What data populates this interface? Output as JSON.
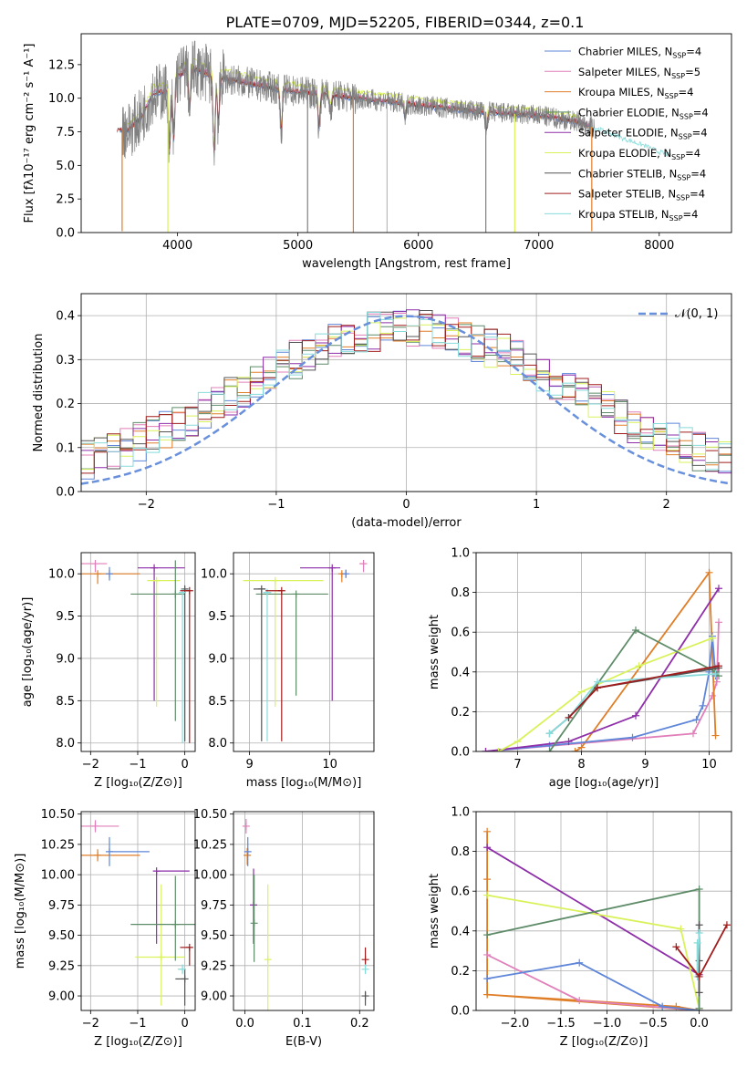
{
  "figure": {
    "title": "PLATE=0709, MJD=52205, FIBERID=0344, z=0.1",
    "series_colors": {
      "Chabrier MILES": "#5f86d9",
      "Salpeter MILES": "#e07fb9",
      "Kroupa MILES": "#e07e28",
      "Chabrier ELODIE": "#5e8c69",
      "Salpeter ELODIE": "#8e2ea9",
      "Kroupa ELODIE": "#d9f25a",
      "Chabrier STELIB": "#555555",
      "Salpeter STELIB": "#a01c1c",
      "Kroupa STELIB": "#88dbdb",
      "data": "#808080",
      "normal": "#6890dc"
    }
  },
  "chart_data": [
    {
      "id": "spectrum",
      "type": "line",
      "ylabel": "Flux [fλ10⁻¹⁷ erg cm⁻² s⁻¹ A⁻¹]",
      "xlabel": "wavelength [Angstrom, rest frame]",
      "xlim": [
        3200,
        8600
      ],
      "ylim": [
        0,
        14.8
      ],
      "xticks": [
        4000,
        5000,
        6000,
        7000,
        8000
      ],
      "yticks": [
        0.0,
        2.5,
        5.0,
        7.5,
        10.0,
        12.5
      ],
      "legend_position": "top-right",
      "legend": [
        {
          "name": "Chabrier MILES",
          "nssp": "4"
        },
        {
          "name": "Salpeter MILES",
          "nssp": "5"
        },
        {
          "name": "Kroupa MILES",
          "nssp": "4"
        },
        {
          "name": "Chabrier ELODIE",
          "nssp": "4"
        },
        {
          "name": "Salpeter ELODIE",
          "nssp": "4"
        },
        {
          "name": "Kroupa ELODIE",
          "nssp": "4"
        },
        {
          "name": "Chabrier STELIB",
          "nssp": "4"
        },
        {
          "name": "Salpeter STELIB",
          "nssp": "4"
        },
        {
          "name": "Kroupa STELIB",
          "nssp": "4"
        }
      ],
      "continuum": {
        "x": [
          3500,
          3600,
          3700,
          3800,
          3900,
          4000,
          4100,
          4200,
          4300,
          4500,
          4700,
          4900,
          5100,
          5300,
          5500,
          5800,
          6100,
          6400,
          6700,
          7000,
          7300,
          7500,
          7700,
          7900,
          8000,
          8100
        ],
        "y": [
          7.6,
          7.7,
          8.6,
          10.4,
          10.5,
          11.6,
          12.3,
          12.0,
          11.6,
          11.3,
          10.9,
          10.6,
          10.4,
          10.2,
          10.0,
          9.7,
          9.4,
          9.1,
          8.9,
          8.7,
          8.3,
          7.7,
          7.0,
          6.4,
          6.0,
          5.7
        ]
      },
      "spikes": [
        {
          "x": 3540,
          "y": 0.1,
          "color": "#e07e28"
        },
        {
          "x": 3920,
          "y": 0.0,
          "color": "#d9f25a"
        },
        {
          "x": 5080,
          "y": 0.0,
          "color": "#808080"
        },
        {
          "x": 5460,
          "y": 0.0,
          "color": "#e07e28"
        },
        {
          "x": 5740,
          "y": 0.0,
          "color": "#bbbbbb"
        },
        {
          "x": 6560,
          "y": 0.0,
          "color": "#808080"
        },
        {
          "x": 6800,
          "y": 0.0,
          "color": "#d9f25a"
        },
        {
          "x": 7440,
          "y": 0.1,
          "color": "#e07e28"
        }
      ]
    },
    {
      "id": "residuals",
      "type": "histogram",
      "xlabel": "(data-model)/error",
      "ylabel": "Normed distribution",
      "xlim": [
        -2.5,
        2.5
      ],
      "ylim": [
        0,
        0.45
      ],
      "xticks": [
        -2,
        -1,
        0,
        1,
        2
      ],
      "yticks": [
        0.0,
        0.1,
        0.2,
        0.3,
        0.4
      ],
      "legend": "𝒩(0, 1)",
      "legend_position": "top-right",
      "gaussian": {
        "mean": 0,
        "sigma": 1
      },
      "bin_width": 0.1
    },
    {
      "id": "age_Z",
      "type": "errorbar",
      "xlabel": "Z [log₁₀(Z/Z⊙)]",
      "ylabel": "age  [log₁₀(age/yr)]",
      "xlim": [
        -2.2,
        0.22
      ],
      "ylim": [
        7.9,
        10.25
      ],
      "xticks": [
        -2,
        -1,
        0
      ],
      "yticks": [
        8.0,
        8.5,
        9.0,
        9.5,
        10.0
      ],
      "points": [
        {
          "series": "Salpeter MILES",
          "x": -1.9,
          "xerr": [
            0.3,
            0.25
          ],
          "y": 10.12,
          "yerr": [
            0.1,
            0.01
          ]
        },
        {
          "series": "Kroupa MILES",
          "x": -1.85,
          "xerr": [
            0.35,
            0.9
          ],
          "y": 10.0,
          "yerr": [
            0.12,
            0.01
          ]
        },
        {
          "series": "Chabrier MILES",
          "x": -1.6,
          "xerr": [
            0.0,
            0.0
          ],
          "y": 10.0,
          "yerr": [
            0.08,
            0.08
          ]
        },
        {
          "series": "Salpeter ELODIE",
          "x": -0.65,
          "xerr": [
            0.35,
            0.65
          ],
          "y": 10.07,
          "yerr": [
            1.57,
            0.01
          ]
        },
        {
          "series": "Kroupa ELODIE",
          "x": -0.6,
          "xerr": [
            0.2,
            0.5
          ],
          "y": 9.92,
          "yerr": [
            1.49,
            0.01
          ]
        },
        {
          "series": "Chabrier ELODIE",
          "x": -0.2,
          "xerr": [
            0.95,
            0.2
          ],
          "y": 9.76,
          "yerr": [
            1.5,
            0.4
          ]
        },
        {
          "series": "Chabrier STELIB",
          "x": 0.0,
          "xerr": [
            0.0,
            0.0
          ],
          "y": 9.82,
          "yerr": [
            1.8,
            0.0
          ]
        },
        {
          "series": "Kroupa STELIB",
          "x": -0.05,
          "xerr": [
            0.05,
            0.05
          ],
          "y": 9.78,
          "yerr": [
            1.78,
            0.0
          ]
        },
        {
          "series": "Salpeter STELIB",
          "x": 0.1,
          "xerr": [
            0.2,
            0.0
          ],
          "y": 9.8,
          "yerr": [
            1.8,
            0.0
          ]
        }
      ]
    },
    {
      "id": "age_mass",
      "type": "errorbar",
      "xlabel": "mass [log₁₀(M/M⊙)]",
      "ylabel": "",
      "xlim": [
        8.8,
        10.55
      ],
      "ylim": [
        7.9,
        10.25
      ],
      "xticks": [
        9,
        10
      ],
      "yticks": [
        8.0,
        8.5,
        9.0,
        9.5,
        10.0
      ],
      "points": [
        {
          "series": "Salpeter MILES",
          "x": 10.42,
          "xerr": [
            0.05,
            0.03
          ],
          "y": 10.12,
          "yerr": [
            0.1,
            0.01
          ]
        },
        {
          "series": "Kroupa MILES",
          "x": 10.15,
          "xerr": [
            0.02,
            0.03
          ],
          "y": 10.0,
          "yerr": [
            0.1,
            0.01
          ]
        },
        {
          "series": "Chabrier MILES",
          "x": 10.2,
          "xerr": [
            0.02,
            0.02
          ],
          "y": 10.0,
          "yerr": [
            0.05,
            0.05
          ]
        },
        {
          "series": "Salpeter ELODIE",
          "x": 10.03,
          "xerr": [
            0.4,
            0.1
          ],
          "y": 10.07,
          "yerr": [
            1.57,
            0.01
          ]
        },
        {
          "series": "Kroupa ELODIE",
          "x": 9.32,
          "xerr": [
            0.4,
            0.6
          ],
          "y": 9.92,
          "yerr": [
            1.49,
            0.01
          ]
        },
        {
          "series": "Chabrier ELODIE",
          "x": 9.58,
          "xerr": [
            0.5,
            0.4
          ],
          "y": 9.76,
          "yerr": [
            1.2,
            0.0
          ]
        },
        {
          "series": "Chabrier STELIB",
          "x": 9.15,
          "xerr": [
            0.1,
            0.05
          ],
          "y": 9.82,
          "yerr": [
            1.8,
            0.0
          ]
        },
        {
          "series": "Kroupa STELIB",
          "x": 9.22,
          "xerr": [
            0.05,
            0.05
          ],
          "y": 9.78,
          "yerr": [
            1.76,
            0.0
          ]
        },
        {
          "series": "Salpeter STELIB",
          "x": 9.4,
          "xerr": [
            0.2,
            0.0
          ],
          "y": 9.8,
          "yerr": [
            1.78,
            0.0
          ]
        }
      ]
    },
    {
      "id": "weight_age",
      "type": "line",
      "xlabel": "age  [log₁₀(age/yr)]",
      "ylabel": "mass weight",
      "xlim": [
        6.35,
        10.35
      ],
      "ylim": [
        0,
        1.0
      ],
      "xticks": [
        7,
        8,
        9,
        10
      ],
      "yticks": [
        0.0,
        0.2,
        0.4,
        0.6,
        0.8,
        1.0
      ],
      "series": [
        {
          "name": "Salpeter MILES",
          "x": [
            6.5,
            9.75,
            10.05,
            10.12,
            10.15
          ],
          "y": [
            0.0,
            0.09,
            0.28,
            0.35,
            0.65
          ]
        },
        {
          "name": "Kroupa MILES",
          "x": [
            7.9,
            8.0,
            10.0,
            10.1
          ],
          "y": [
            0.0,
            0.02,
            0.9,
            0.08
          ]
        },
        {
          "name": "Chabrier MILES",
          "x": [
            6.5,
            7.5,
            8.8,
            9.8,
            9.9,
            10.0,
            10.05,
            10.1
          ],
          "y": [
            0.0,
            0.03,
            0.07,
            0.16,
            0.23,
            0.4,
            0.58,
            0.38
          ]
        },
        {
          "name": "Salpeter ELODIE",
          "x": [
            6.5,
            7.8,
            8.85,
            10.15
          ],
          "y": [
            0.0,
            0.05,
            0.18,
            0.82
          ]
        },
        {
          "name": "Kroupa ELODIE",
          "x": [
            6.7,
            7.0,
            8.0,
            8.9,
            10.05
          ],
          "y": [
            0.0,
            0.05,
            0.3,
            0.43,
            0.57
          ]
        },
        {
          "name": "Chabrier ELODIE",
          "x": [
            7.5,
            8.85,
            10.1,
            10.15
          ],
          "y": [
            0.0,
            0.61,
            0.4,
            0.38
          ]
        },
        {
          "name": "Chabrier STELIB",
          "x": [
            7.5,
            7.8,
            8.25,
            10.15
          ],
          "y": [
            0.09,
            0.17,
            0.32,
            0.42
          ]
        },
        {
          "name": "Kroupa STELIB",
          "x": [
            7.5,
            7.8,
            8.25,
            10.1
          ],
          "y": [
            0.09,
            0.17,
            0.35,
            0.39
          ]
        },
        {
          "name": "Salpeter STELIB",
          "x": [
            7.8,
            8.25,
            10.15
          ],
          "y": [
            0.17,
            0.32,
            0.43
          ]
        }
      ]
    },
    {
      "id": "mass_Z",
      "type": "errorbar",
      "xlabel": "Z [log₁₀(Z/Z⊙)]",
      "ylabel": "mass [log₁₀(M/M⊙)]",
      "xlim": [
        -2.2,
        0.22
      ],
      "ylim": [
        8.88,
        10.52
      ],
      "xticks": [
        -2,
        -1,
        0
      ],
      "yticks": [
        9.0,
        9.25,
        9.5,
        9.75,
        10.0,
        10.25,
        10.5
      ],
      "points": [
        {
          "series": "Salpeter MILES",
          "x": -1.9,
          "xerr": [
            0.3,
            0.5
          ],
          "y": 10.4,
          "yerr": [
            0.05,
            0.05
          ]
        },
        {
          "series": "Kroupa MILES",
          "x": -1.85,
          "xerr": [
            0.35,
            0.9
          ],
          "y": 10.16,
          "yerr": [
            0.05,
            0.05
          ]
        },
        {
          "series": "Chabrier MILES",
          "x": -1.6,
          "xerr": [
            0.0,
            0.85
          ],
          "y": 10.19,
          "yerr": [
            0.12,
            0.12
          ]
        },
        {
          "series": "Salpeter ELODIE",
          "x": -0.6,
          "xerr": [
            0.0,
            0.7
          ],
          "y": 10.03,
          "yerr": [
            0.6,
            0.0
          ]
        },
        {
          "series": "Kroupa ELODIE",
          "x": -0.5,
          "xerr": [
            0.55,
            0.5
          ],
          "y": 9.32,
          "yerr": [
            0.4,
            0.6
          ]
        },
        {
          "series": "Chabrier ELODIE",
          "x": -0.2,
          "xerr": [
            0.95,
            0.5
          ],
          "y": 9.59,
          "yerr": [
            0.3,
            0.4
          ]
        },
        {
          "series": "Chabrier STELIB",
          "x": 0.0,
          "xerr": [
            0.2,
            0.0
          ],
          "y": 9.14,
          "yerr": [
            0.22,
            0.08
          ]
        },
        {
          "series": "Kroupa STELIB",
          "x": -0.05,
          "xerr": [
            0.1,
            0.05
          ],
          "y": 9.22,
          "yerr": [
            0.04,
            0.04
          ]
        },
        {
          "series": "Salpeter STELIB",
          "x": 0.1,
          "xerr": [
            0.2,
            0.0
          ],
          "y": 9.4,
          "yerr": [
            0.15,
            0.0
          ]
        }
      ]
    },
    {
      "id": "mass_ebv",
      "type": "errorbar",
      "xlabel": "E(B-V)",
      "ylabel": "",
      "xlim": [
        -0.02,
        0.225
      ],
      "ylim": [
        8.88,
        10.52
      ],
      "xticks": [
        0.0,
        0.1,
        0.2
      ],
      "yticks": [
        9.0,
        9.25,
        9.5,
        9.75,
        10.0,
        10.25,
        10.5
      ],
      "points": [
        {
          "series": "Salpeter MILES",
          "x": 0.002,
          "xerr": [
            0,
            0
          ],
          "y": 10.4,
          "yerr": [
            0.06,
            0.06
          ]
        },
        {
          "series": "Kroupa MILES",
          "x": 0.004,
          "xerr": [
            0,
            0
          ],
          "y": 10.16,
          "yerr": [
            0.08,
            0.06
          ]
        },
        {
          "series": "Chabrier MILES",
          "x": 0.005,
          "xerr": [
            0,
            0
          ],
          "y": 10.19,
          "yerr": [
            0.12,
            0.12
          ]
        },
        {
          "series": "Salpeter ELODIE",
          "x": 0.015,
          "xerr": [
            0,
            0
          ],
          "y": 9.75,
          "yerr": [
            0.32,
            0.3
          ]
        },
        {
          "series": "Chabrier ELODIE",
          "x": 0.016,
          "xerr": [
            0,
            0
          ],
          "y": 9.6,
          "yerr": [
            0.32,
            0.4
          ]
        },
        {
          "series": "Kroupa ELODIE",
          "x": 0.04,
          "xerr": [
            0,
            0
          ],
          "y": 9.3,
          "yerr": [
            0.42,
            0.62
          ]
        },
        {
          "series": "Salpeter STELIB",
          "x": 0.21,
          "xerr": [
            0,
            0
          ],
          "y": 9.3,
          "yerr": [
            0.05,
            0.1
          ]
        },
        {
          "series": "Chabrier STELIB",
          "x": 0.21,
          "xerr": [
            0,
            0
          ],
          "y": 9.0,
          "yerr": [
            0.08,
            0.04
          ]
        },
        {
          "series": "Kroupa STELIB",
          "x": 0.21,
          "xerr": [
            0,
            0
          ],
          "y": 9.22,
          "yerr": [
            0.04,
            0.04
          ]
        }
      ]
    },
    {
      "id": "weight_Z",
      "type": "line",
      "xlabel": "Z [log₁₀(Z/Z⊙)]",
      "ylabel": "mass weight",
      "xlim": [
        -2.42,
        0.35
      ],
      "ylim": [
        0,
        1.0
      ],
      "xticks": [
        -2.0,
        -1.5,
        -1.0,
        -0.5,
        0.0
      ],
      "yticks": [
        0.0,
        0.2,
        0.4,
        0.6,
        0.8,
        1.0
      ],
      "series": [
        {
          "name": "Kroupa MILES",
          "x": [
            -2.3,
            -2.3,
            -2.3,
            0.0,
            -0.25,
            -2.3
          ],
          "y": [
            0.9,
            0.66,
            0.08,
            0.0,
            0.02,
            0.08
          ]
        },
        {
          "name": "Salpeter MILES",
          "x": [
            -2.3,
            -1.3,
            0.0
          ],
          "y": [
            0.28,
            0.05,
            0.0
          ]
        },
        {
          "name": "Chabrier MILES",
          "x": [
            -2.3,
            -1.3,
            -0.4,
            0.0
          ],
          "y": [
            0.16,
            0.24,
            0.02,
            0.0
          ]
        },
        {
          "name": "Salpeter ELODIE",
          "x": [
            -2.3,
            0.0,
            0.0
          ],
          "y": [
            0.82,
            0.18,
            0.01
          ]
        },
        {
          "name": "Kroupa ELODIE",
          "x": [
            -2.3,
            -0.2,
            0.0
          ],
          "y": [
            0.58,
            0.41,
            0.01
          ]
        },
        {
          "name": "Chabrier ELODIE",
          "x": [
            -2.3,
            0.0,
            0.0
          ],
          "y": [
            0.38,
            0.61,
            0.01
          ]
        },
        {
          "name": "Chabrier STELIB",
          "x": [
            0.0,
            0.0,
            0.0
          ],
          "y": [
            0.43,
            0.25,
            0.09
          ]
        },
        {
          "name": "Kroupa STELIB",
          "x": [
            -0.02,
            -0.02,
            0.0
          ],
          "y": [
            0.34,
            0.17,
            0.39
          ]
        },
        {
          "name": "Salpeter STELIB",
          "x": [
            -0.25,
            0.0,
            0.3
          ],
          "y": [
            0.32,
            0.17,
            0.43
          ]
        }
      ]
    }
  ]
}
